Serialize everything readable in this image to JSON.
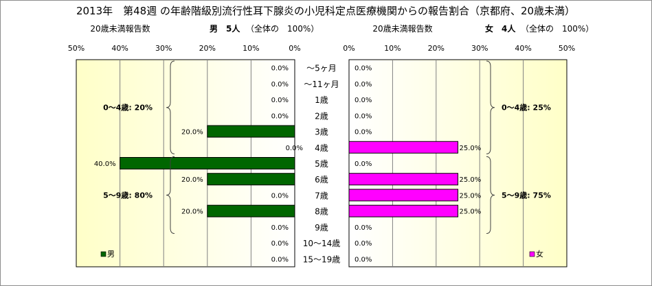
{
  "chart_data": {
    "type": "bar",
    "orientation": "horizontal-pyramid",
    "title": "2013年　第48週 の年齢階級別流行性耳下腺炎の小児科定点医療機関からの報告割合（京都府、20歳未満）",
    "categories": [
      "～5ヶ月",
      "～11ヶ月",
      "1歳",
      "2歳",
      "3歳",
      "4歳",
      "5歳",
      "6歳",
      "7歳",
      "8歳",
      "9歳",
      "10～14歳",
      "15～19歳"
    ],
    "xlim": [
      0,
      50
    ],
    "grid": true,
    "male": {
      "header_left": "20歳未満報告数",
      "header": "男　5人",
      "header_share": "（全体の　100%）",
      "legend": "男",
      "color": "#006600",
      "values": [
        0,
        0,
        0,
        0,
        20,
        0,
        40,
        20,
        0,
        20,
        0,
        0,
        0
      ],
      "labels": [
        "0.0%",
        "0.0%",
        "0.0%",
        "0.0%",
        "20.0%",
        "0.0%",
        "40.0%",
        "20.0%",
        "0.0%",
        "20.0%",
        "0.0%",
        "0.0%",
        "0.0%"
      ],
      "ticks": [
        "50%",
        "40%",
        "30%",
        "20%",
        "10%",
        "0%"
      ],
      "groups": [
        {
          "label": "0～4歳: 20%",
          "from": 0,
          "to": 5
        },
        {
          "label": "5～9歳: 80%",
          "from": 6,
          "to": 10
        }
      ]
    },
    "female": {
      "header_left": "20歳未満報告数",
      "header": "女　4人",
      "header_share": "（全体の　100%）",
      "legend": "女",
      "color": "#ff00ff",
      "values": [
        0,
        0,
        0,
        0,
        0,
        25,
        0,
        25,
        25,
        25,
        0,
        0,
        0
      ],
      "labels": [
        "0.0%",
        "0.0%",
        "0.0%",
        "0.0%",
        "0.0%",
        "25.0%",
        "0.0%",
        "25.0%",
        "25.0%",
        "25.0%",
        "0.0%",
        "0.0%",
        "0.0%"
      ],
      "ticks": [
        "0%",
        "10%",
        "20%",
        "30%",
        "40%",
        "50%"
      ],
      "groups": [
        {
          "label": "0～4歳: 25%",
          "from": 0,
          "to": 5
        },
        {
          "label": "5～9歳: 75%",
          "from": 6,
          "to": 10
        }
      ]
    }
  }
}
